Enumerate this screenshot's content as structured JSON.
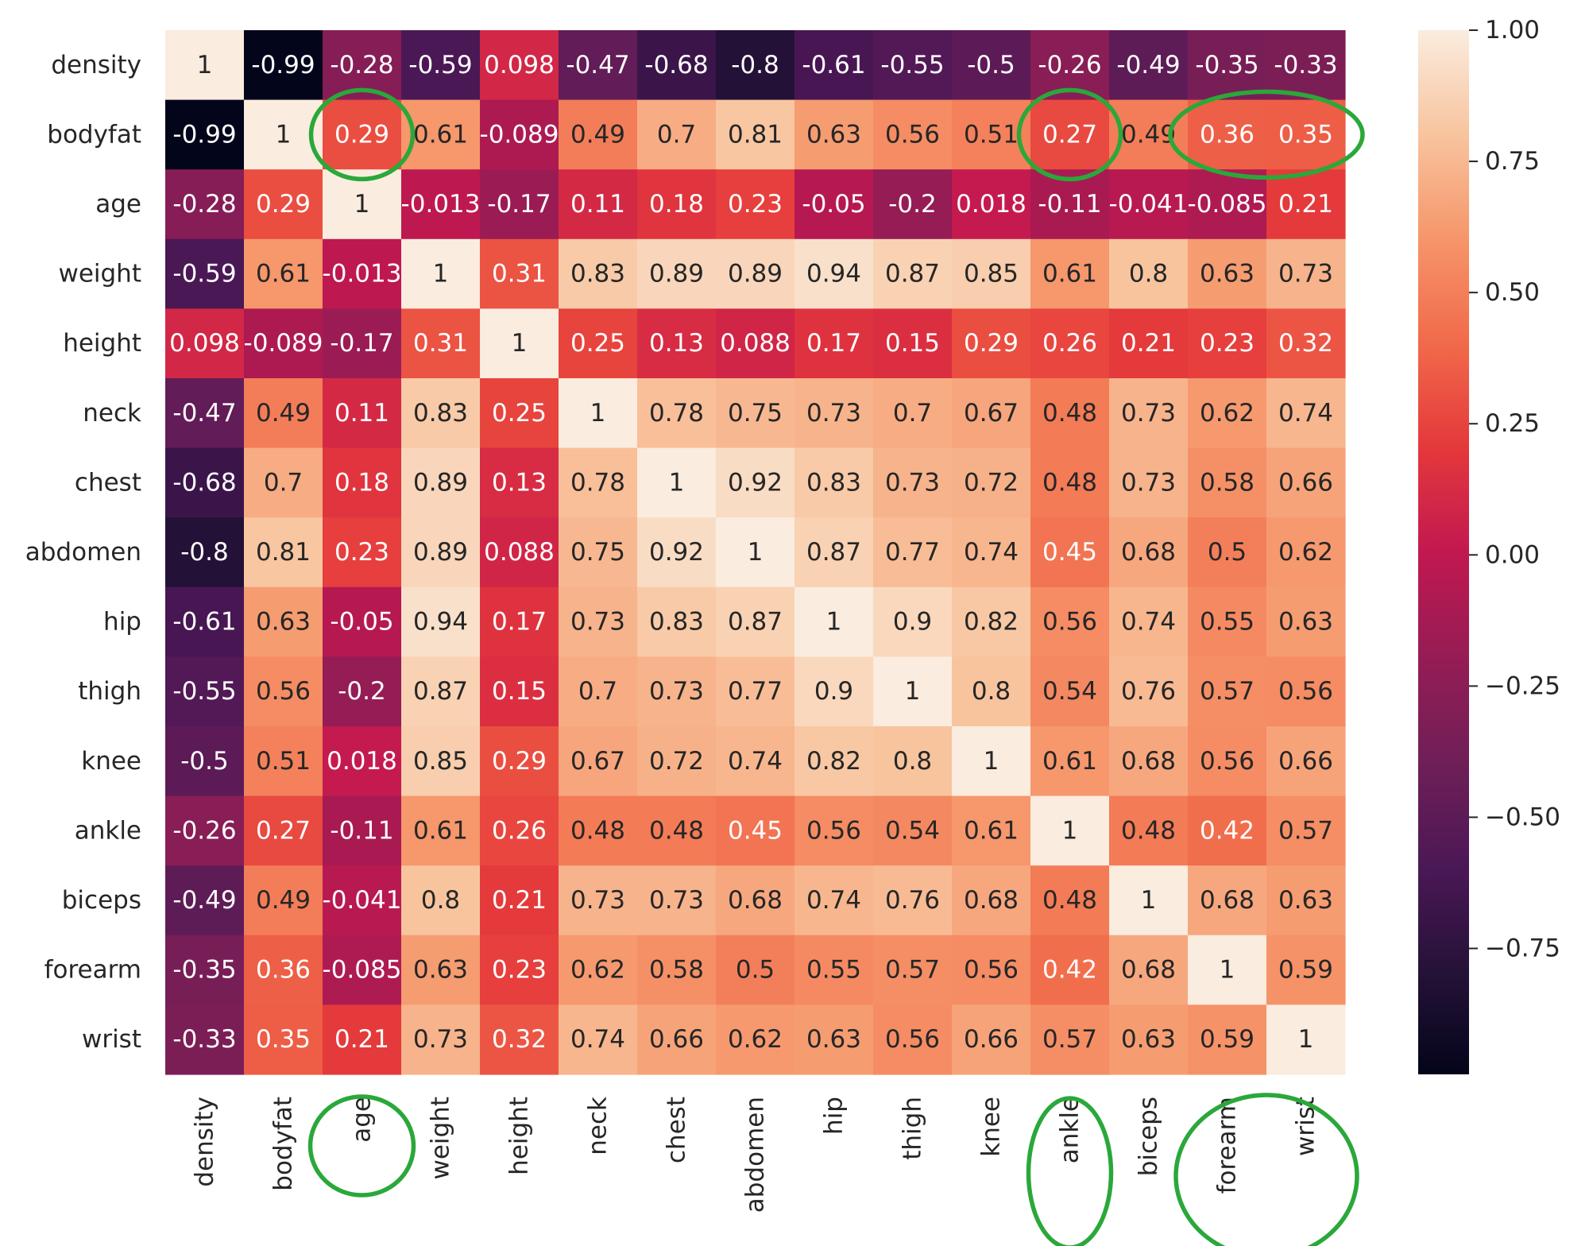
{
  "chart_data": {
    "type": "heatmap",
    "title": "",
    "xlabel": "",
    "ylabel": "",
    "rows": [
      "density",
      "bodyfat",
      "age",
      "weight",
      "height",
      "neck",
      "chest",
      "abdomen",
      "hip",
      "thigh",
      "knee",
      "ankle",
      "biceps",
      "forearm",
      "wrist"
    ],
    "columns": [
      "density",
      "bodyfat",
      "age",
      "weight",
      "height",
      "neck",
      "chest",
      "abdomen",
      "hip",
      "thigh",
      "knee",
      "ankle",
      "biceps",
      "forearm",
      "wrist"
    ],
    "values": [
      [
        "1",
        "-0.99",
        "-0.28",
        "-0.59",
        "0.098",
        "-0.47",
        "-0.68",
        "-0.8",
        "-0.61",
        "-0.55",
        "-0.5",
        "-0.26",
        "-0.49",
        "-0.35",
        "-0.33"
      ],
      [
        "-0.99",
        "1",
        "0.29",
        "0.61",
        "-0.089",
        "0.49",
        "0.7",
        "0.81",
        "0.63",
        "0.56",
        "0.51",
        "0.27",
        "0.49",
        "0.36",
        "0.35"
      ],
      [
        "-0.28",
        "0.29",
        "1",
        "-0.013",
        "-0.17",
        "0.11",
        "0.18",
        "0.23",
        "-0.05",
        "-0.2",
        "0.018",
        "-0.11",
        "-0.041",
        "-0.085",
        "0.21"
      ],
      [
        "-0.59",
        "0.61",
        "-0.013",
        "1",
        "0.31",
        "0.83",
        "0.89",
        "0.89",
        "0.94",
        "0.87",
        "0.85",
        "0.61",
        "0.8",
        "0.63",
        "0.73"
      ],
      [
        "0.098",
        "-0.089",
        "-0.17",
        "0.31",
        "1",
        "0.25",
        "0.13",
        "0.088",
        "0.17",
        "0.15",
        "0.29",
        "0.26",
        "0.21",
        "0.23",
        "0.32"
      ],
      [
        "-0.47",
        "0.49",
        "0.11",
        "0.83",
        "0.25",
        "1",
        "0.78",
        "0.75",
        "0.73",
        "0.7",
        "0.67",
        "0.48",
        "0.73",
        "0.62",
        "0.74"
      ],
      [
        "-0.68",
        "0.7",
        "0.18",
        "0.89",
        "0.13",
        "0.78",
        "1",
        "0.92",
        "0.83",
        "0.73",
        "0.72",
        "0.48",
        "0.73",
        "0.58",
        "0.66"
      ],
      [
        "-0.8",
        "0.81",
        "0.23",
        "0.89",
        "0.088",
        "0.75",
        "0.92",
        "1",
        "0.87",
        "0.77",
        "0.74",
        "0.45",
        "0.68",
        "0.5",
        "0.62"
      ],
      [
        "-0.61",
        "0.63",
        "-0.05",
        "0.94",
        "0.17",
        "0.73",
        "0.83",
        "0.87",
        "1",
        "0.9",
        "0.82",
        "0.56",
        "0.74",
        "0.55",
        "0.63"
      ],
      [
        "-0.55",
        "0.56",
        "-0.2",
        "0.87",
        "0.15",
        "0.7",
        "0.73",
        "0.77",
        "0.9",
        "1",
        "0.8",
        "0.54",
        "0.76",
        "0.57",
        "0.56"
      ],
      [
        "-0.5",
        "0.51",
        "0.018",
        "0.85",
        "0.29",
        "0.67",
        "0.72",
        "0.74",
        "0.82",
        "0.8",
        "1",
        "0.61",
        "0.68",
        "0.56",
        "0.66"
      ],
      [
        "-0.26",
        "0.27",
        "-0.11",
        "0.61",
        "0.26",
        "0.48",
        "0.48",
        "0.45",
        "0.56",
        "0.54",
        "0.61",
        "1",
        "0.48",
        "0.42",
        "0.57"
      ],
      [
        "-0.49",
        "0.49",
        "-0.041",
        "0.8",
        "0.21",
        "0.73",
        "0.73",
        "0.68",
        "0.74",
        "0.76",
        "0.68",
        "0.48",
        "1",
        "0.68",
        "0.63"
      ],
      [
        "-0.35",
        "0.36",
        "-0.085",
        "0.63",
        "0.23",
        "0.62",
        "0.58",
        "0.5",
        "0.55",
        "0.57",
        "0.56",
        "0.42",
        "0.68",
        "1",
        "0.59"
      ],
      [
        "-0.33",
        "0.35",
        "0.21",
        "0.73",
        "0.32",
        "0.74",
        "0.66",
        "0.62",
        "0.63",
        "0.56",
        "0.66",
        "0.57",
        "0.63",
        "0.59",
        "1"
      ]
    ],
    "colorbar": {
      "range": [
        -0.99,
        1.0
      ],
      "ticks": [
        "1.00",
        "0.75",
        "0.50",
        "0.25",
        "0.00",
        "−0.25",
        "−0.50",
        "−0.75"
      ],
      "tick_values": [
        1.0,
        0.75,
        0.5,
        0.25,
        0.0,
        -0.25,
        -0.5,
        -0.75
      ],
      "colormap": "rocket"
    },
    "annotations": {
      "type": "ellipse-highlight",
      "color": "#2aa83a",
      "targets": [
        {
          "kind": "cell",
          "row": "bodyfat",
          "column": "age"
        },
        {
          "kind": "cell",
          "row": "bodyfat",
          "column": "ankle"
        },
        {
          "kind": "cell-span",
          "row": "bodyfat",
          "columns": [
            "forearm",
            "wrist"
          ]
        },
        {
          "kind": "x-label",
          "columns": [
            "age"
          ]
        },
        {
          "kind": "x-label",
          "columns": [
            "ankle"
          ]
        },
        {
          "kind": "x-label",
          "columns": [
            "forearm",
            "wrist"
          ]
        }
      ]
    }
  }
}
